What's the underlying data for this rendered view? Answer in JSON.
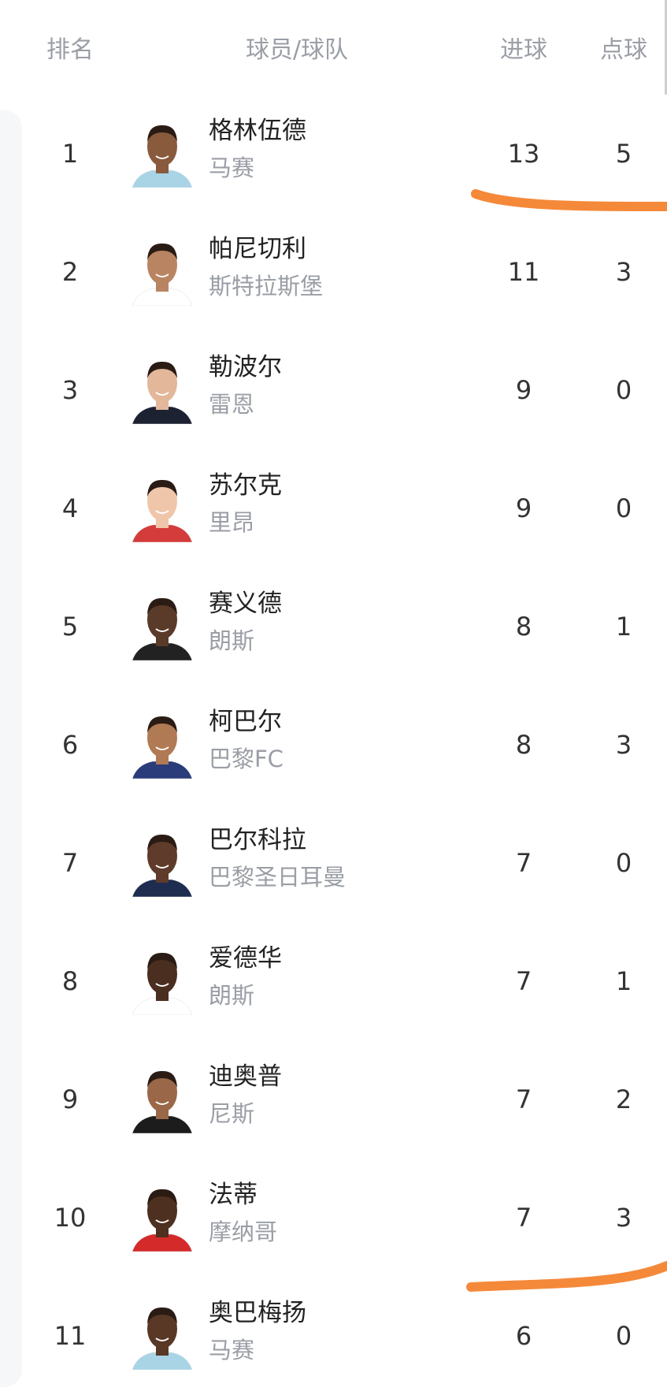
{
  "header": {
    "rank": "排名",
    "player_team": "球员/球队",
    "goals": "进球",
    "penalties": "点球"
  },
  "rows": [
    {
      "rank": "1",
      "name": "格林伍德",
      "team": "马赛",
      "goals": "13",
      "penalties": "5",
      "skin": "#8a5a3c",
      "kit": "#a8d4e6"
    },
    {
      "rank": "2",
      "name": "帕尼切利",
      "team": "斯特拉斯堡",
      "goals": "11",
      "penalties": "3",
      "skin": "#b98462",
      "kit": "#ffffff"
    },
    {
      "rank": "3",
      "name": "勒波尔",
      "team": "雷恩",
      "goals": "9",
      "penalties": "0",
      "skin": "#e2b79a",
      "kit": "#1d2233"
    },
    {
      "rank": "4",
      "name": "苏尔克",
      "team": "里昂",
      "goals": "9",
      "penalties": "0",
      "skin": "#f0c6aa",
      "kit": "#d43b3b"
    },
    {
      "rank": "5",
      "name": "赛义德",
      "team": "朗斯",
      "goals": "8",
      "penalties": "1",
      "skin": "#5a3a28",
      "kit": "#222222"
    },
    {
      "rank": "6",
      "name": "柯巴尔",
      "team": "巴黎FC",
      "goals": "8",
      "penalties": "3",
      "skin": "#b07a55",
      "kit": "#2a3c7a"
    },
    {
      "rank": "7",
      "name": "巴尔科拉",
      "team": "巴黎圣日耳曼",
      "goals": "7",
      "penalties": "0",
      "skin": "#5e3b2a",
      "kit": "#1e2c4f"
    },
    {
      "rank": "8",
      "name": "爱德华",
      "team": "朗斯",
      "goals": "7",
      "penalties": "1",
      "skin": "#4a2e20",
      "kit": "#ffffff"
    },
    {
      "rank": "9",
      "name": "迪奥普",
      "team": "尼斯",
      "goals": "7",
      "penalties": "2",
      "skin": "#9a6848",
      "kit": "#1c1c1c"
    },
    {
      "rank": "10",
      "name": "法蒂",
      "team": "摩纳哥",
      "goals": "7",
      "penalties": "3",
      "skin": "#4e3020",
      "kit": "#d42a2a"
    },
    {
      "rank": "11",
      "name": "奥巴梅扬",
      "team": "马赛",
      "goals": "6",
      "penalties": "0",
      "skin": "#5a3826",
      "kit": "#a8d4e6"
    }
  ],
  "annotation_color": "#f5893a"
}
